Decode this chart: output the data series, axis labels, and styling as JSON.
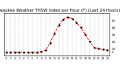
{
  "hours": [
    0,
    1,
    2,
    3,
    4,
    5,
    6,
    7,
    8,
    9,
    10,
    11,
    12,
    13,
    14,
    15,
    16,
    17,
    18,
    19,
    20,
    21,
    22,
    23
  ],
  "values": [
    5,
    5,
    5,
    5,
    5,
    5,
    5,
    5,
    6,
    8,
    18,
    32,
    44,
    52,
    55,
    53,
    47,
    40,
    30,
    20,
    12,
    10,
    9,
    8
  ],
  "line_color": "#ff0000",
  "marker_color": "#000000",
  "bg_color": "#ffffff",
  "grid_color": "#888888",
  "title": "Milwaukee Weather THSW Index per Hour (F) (Last 24 Hours)",
  "title_fontsize": 3.8,
  "title_color": "#000000",
  "ylim": [
    0,
    60
  ],
  "xlim": [
    -0.5,
    23.5
  ],
  "yticks": [
    5,
    10,
    20,
    30,
    40,
    50
  ],
  "ytick_labels": [
    "5",
    "10",
    "20",
    "30",
    "40",
    "50"
  ],
  "xtick_positions": [
    0,
    1,
    2,
    3,
    4,
    5,
    6,
    7,
    8,
    9,
    10,
    11,
    12,
    13,
    14,
    15,
    16,
    17,
    18,
    19,
    20,
    21,
    22,
    23
  ],
  "xtick_labels": [
    "0",
    "1",
    "2",
    "3",
    "4",
    "5",
    "6",
    "7",
    "8",
    "9",
    "10",
    "11",
    "12",
    "13",
    "14",
    "15",
    "16",
    "17",
    "18",
    "19",
    "20",
    "21",
    "22",
    "23"
  ]
}
